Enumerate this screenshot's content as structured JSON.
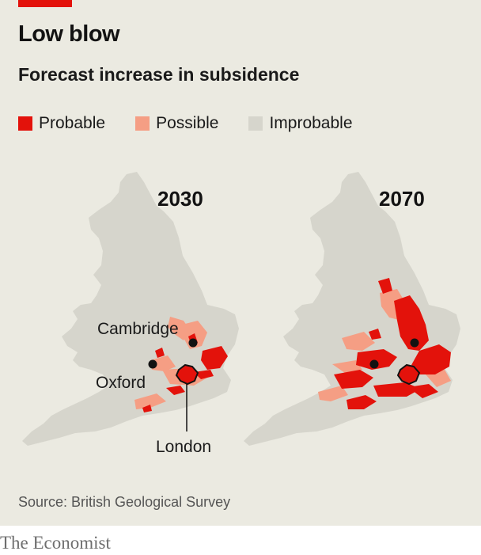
{
  "header": {
    "title": "Low blow",
    "subtitle": "Forecast increase in subsidence"
  },
  "legend": [
    {
      "label": "Probable",
      "color": "#e3120b"
    },
    {
      "label": "Possible",
      "color": "#f59e84"
    },
    {
      "label": "Improbable",
      "color": "#d6d5cc"
    }
  ],
  "maps": [
    {
      "year": "2030"
    },
    {
      "year": "2070"
    }
  ],
  "cities": {
    "cambridge": "Cambridge",
    "oxford": "Oxford",
    "london": "London"
  },
  "footer": {
    "source": "Source: British Geological Survey",
    "brand": "The Economist"
  }
}
